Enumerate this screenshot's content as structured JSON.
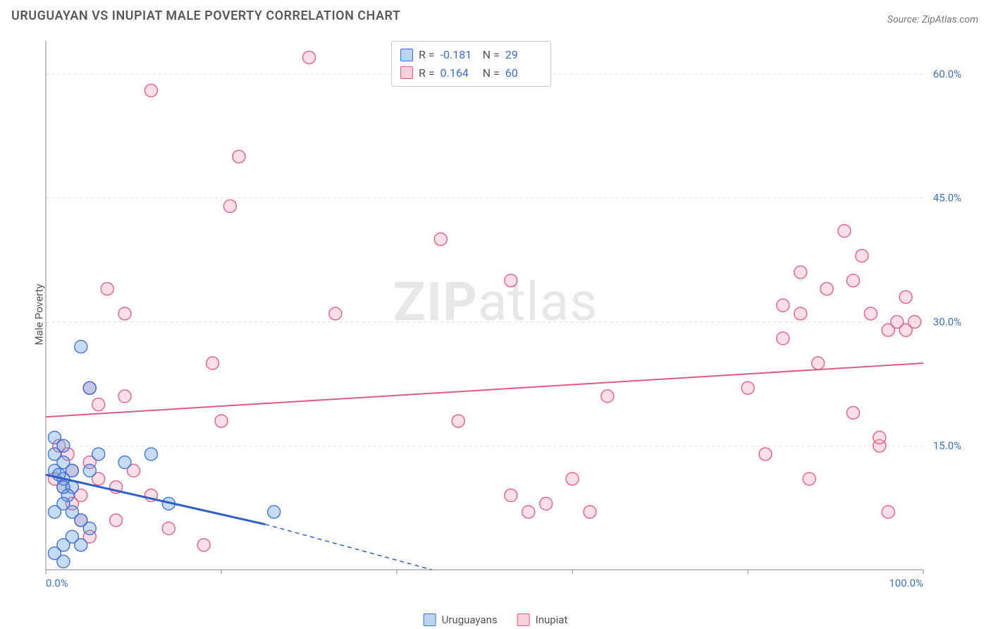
{
  "title": "URUGUAYAN VS INUPIAT MALE POVERTY CORRELATION CHART",
  "source": "Source: ZipAtlas.com",
  "ylabel": "Male Poverty",
  "watermark_zip": "ZIP",
  "watermark_atlas": "atlas",
  "chart": {
    "type": "scatter",
    "xlim": [
      0,
      100
    ],
    "ylim": [
      0,
      64
    ],
    "xticks": [
      0,
      20,
      40,
      60,
      80,
      100
    ],
    "xtick_labels_shown": {
      "0": "0.0%",
      "100": "100.0%"
    },
    "yticks": [
      15,
      30,
      45,
      60
    ],
    "ytick_labels": [
      "15.0%",
      "30.0%",
      "45.0%",
      "60.0%"
    ],
    "grid_color": "#e0e0e0",
    "background_color": "#ffffff",
    "tick_label_color": "#3b6fd6",
    "tick_fontsize": 15,
    "point_radius": 9,
    "series": [
      {
        "name": "Uruguayans",
        "color_fill": "#5a9ae0",
        "color_stroke": "#3b6fd6",
        "R": -0.181,
        "N": 29,
        "trend_solid": {
          "x1": 0,
          "y1": 11.5,
          "x2": 25,
          "y2": 5.5
        },
        "trend_dash": {
          "x1": 25,
          "y1": 5.5,
          "x2": 44,
          "y2": 0
        },
        "points": [
          [
            1,
            16
          ],
          [
            1,
            14
          ],
          [
            1,
            12
          ],
          [
            2,
            13
          ],
          [
            2,
            11
          ],
          [
            2,
            10
          ],
          [
            1.5,
            11.5
          ],
          [
            3,
            12
          ],
          [
            3,
            10
          ],
          [
            2.5,
            9
          ],
          [
            2,
            8
          ],
          [
            1,
            7
          ],
          [
            3,
            7
          ],
          [
            4,
            6
          ],
          [
            5,
            5
          ],
          [
            3,
            4
          ],
          [
            2,
            3
          ],
          [
            4,
            3
          ],
          [
            1,
            2
          ],
          [
            2,
            1
          ],
          [
            6,
            14
          ],
          [
            5,
            12
          ],
          [
            9,
            13
          ],
          [
            12,
            14
          ],
          [
            14,
            8
          ],
          [
            26,
            7
          ],
          [
            4,
            27
          ],
          [
            5,
            22
          ],
          [
            2,
            15
          ]
        ]
      },
      {
        "name": "Inupiat",
        "color_fill": "#f5a3b8",
        "color_stroke": "#e05a82",
        "R": 0.164,
        "N": 60,
        "trend_solid": {
          "x1": 0,
          "y1": 18.5,
          "x2": 100,
          "y2": 25
        },
        "points": [
          [
            30,
            62
          ],
          [
            12,
            58
          ],
          [
            22,
            50
          ],
          [
            21,
            44
          ],
          [
            7,
            34
          ],
          [
            9,
            31
          ],
          [
            33,
            31
          ],
          [
            45,
            40
          ],
          [
            5,
            22
          ],
          [
            6,
            20
          ],
          [
            9,
            21
          ],
          [
            19,
            25
          ],
          [
            20,
            18
          ],
          [
            5,
            13
          ],
          [
            6,
            11
          ],
          [
            8,
            10
          ],
          [
            10,
            12
          ],
          [
            12,
            9
          ],
          [
            18,
            3
          ],
          [
            14,
            5
          ],
          [
            4,
            9
          ],
          [
            1.5,
            15
          ],
          [
            2.5,
            14
          ],
          [
            3,
            12
          ],
          [
            1,
            11
          ],
          [
            2,
            10
          ],
          [
            3,
            8
          ],
          [
            4,
            6
          ],
          [
            5,
            4
          ],
          [
            8,
            6
          ],
          [
            47,
            18
          ],
          [
            53,
            9
          ],
          [
            55,
            7
          ],
          [
            57,
            8
          ],
          [
            60,
            11
          ],
          [
            62,
            7
          ],
          [
            64,
            21
          ],
          [
            80,
            22
          ],
          [
            82,
            14
          ],
          [
            84,
            28
          ],
          [
            84,
            32
          ],
          [
            86,
            36
          ],
          [
            86,
            31
          ],
          [
            87,
            11
          ],
          [
            88,
            25
          ],
          [
            89,
            34
          ],
          [
            91,
            41
          ],
          [
            92,
            35
          ],
          [
            92,
            19
          ],
          [
            93,
            38
          ],
          [
            94,
            31
          ],
          [
            95,
            15
          ],
          [
            95,
            16
          ],
          [
            96,
            29
          ],
          [
            96,
            7
          ],
          [
            97,
            30
          ],
          [
            98,
            33
          ],
          [
            98,
            29
          ],
          [
            99,
            30
          ],
          [
            53,
            35
          ]
        ]
      }
    ]
  },
  "stats_box": {
    "rows": [
      {
        "swatch": "blue",
        "R_label": "R =",
        "R": "-0.181",
        "N_label": "N =",
        "N": "29"
      },
      {
        "swatch": "pink",
        "R_label": "R =",
        "R": "0.164",
        "N_label": "N =",
        "N": "60"
      }
    ]
  },
  "bottom_legend": [
    {
      "swatch": "blue",
      "label": "Uruguayans"
    },
    {
      "swatch": "pink",
      "label": "Inupiat"
    }
  ]
}
